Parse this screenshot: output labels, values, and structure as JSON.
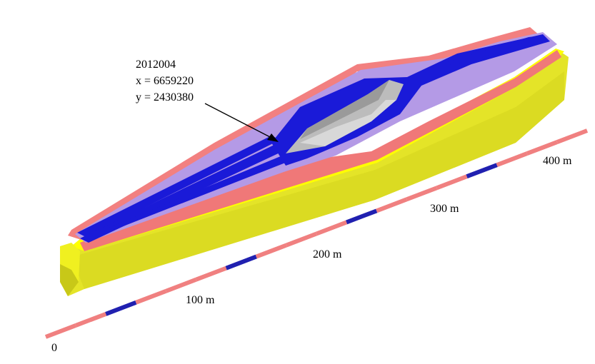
{
  "annotation": {
    "id": "2012004",
    "x_line": "x = 6659220",
    "y_line": "y = 2430380"
  },
  "scale_bar": {
    "labels": [
      "0",
      "100 m",
      "200 m",
      "300 m",
      "400 m"
    ],
    "colors": {
      "light": "#f08080",
      "dark": "#2020b0"
    }
  },
  "colors": {
    "yellow_face": "#e6e62a",
    "yellow_top": "#ffff00",
    "pink_rim": "#f28080",
    "lavender": "#b098e8",
    "blue": "#1a1ad8",
    "gray_pit": "#b8b8b8"
  }
}
